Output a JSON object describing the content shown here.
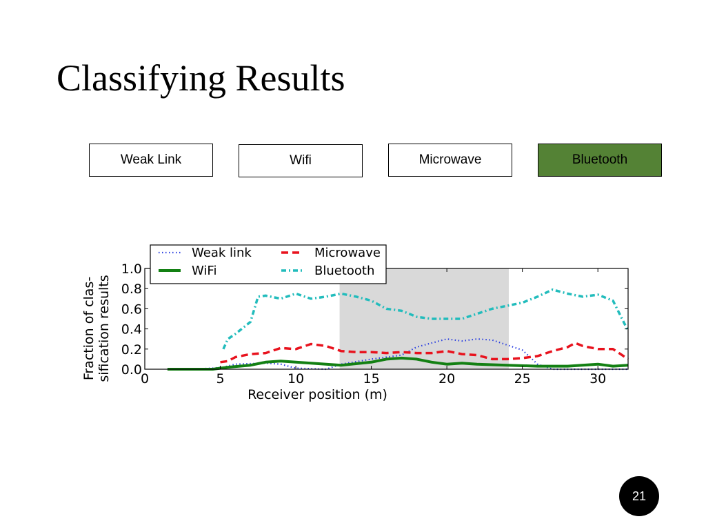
{
  "slide": {
    "title": "Classifying Results",
    "page_number": "21"
  },
  "tags": [
    {
      "label": "Weak Link",
      "active": false
    },
    {
      "label": "Wifi",
      "active": false
    },
    {
      "label": "Microwave",
      "active": false
    },
    {
      "label": "Bluetooth",
      "active": true
    }
  ],
  "colors": {
    "active_tag": "#548235",
    "weak_link": "#2a3fe0",
    "wifi": "#138013",
    "microwave": "#e8121d",
    "bluetooth": "#22bcbc",
    "shade": "#d9d9d9"
  },
  "chart_data": {
    "type": "line",
    "title": "",
    "xlabel": "Receiver position (m)",
    "ylabel": "Fraction of clas-\nsification results",
    "xlim": [
      0,
      32
    ],
    "ylim": [
      0,
      1.0
    ],
    "xticks": [
      0,
      5,
      10,
      15,
      20,
      25,
      30
    ],
    "yticks": [
      0.0,
      0.2,
      0.4,
      0.6,
      0.8,
      1.0
    ],
    "shaded_region": [
      12.9,
      24.1
    ],
    "legend_position": "top-left",
    "series": [
      {
        "name": "Weak link",
        "style": "dotted",
        "x": [
          1.5,
          3,
          4.5,
          5.2,
          6,
          8,
          9,
          10,
          12,
          13,
          15,
          17,
          18,
          19,
          20,
          21,
          22,
          23,
          24,
          25,
          26,
          27,
          28,
          30,
          32
        ],
        "y": [
          0.0,
          0.0,
          0.01,
          0.02,
          0.05,
          0.06,
          0.05,
          0.01,
          0.0,
          0.05,
          0.1,
          0.14,
          0.22,
          0.26,
          0.3,
          0.28,
          0.3,
          0.29,
          0.24,
          0.19,
          0.05,
          0.0,
          0.0,
          0.0,
          0.0
        ]
      },
      {
        "name": "WiFi",
        "style": "solid",
        "x": [
          1.5,
          3,
          4.5,
          5.5,
          7,
          8,
          9,
          10,
          12,
          13,
          15,
          16,
          17,
          18,
          19,
          20,
          21,
          22,
          24,
          26,
          28,
          30,
          31,
          32
        ],
        "y": [
          0.0,
          0.0,
          0.0,
          0.02,
          0.04,
          0.07,
          0.08,
          0.07,
          0.05,
          0.04,
          0.07,
          0.1,
          0.11,
          0.1,
          0.07,
          0.05,
          0.06,
          0.05,
          0.04,
          0.03,
          0.03,
          0.05,
          0.03,
          0.04
        ]
      },
      {
        "name": "Microwave",
        "style": "dashed",
        "x": [
          5,
          5.5,
          6,
          7,
          8,
          9,
          10,
          11,
          12,
          13,
          14,
          15,
          16,
          17,
          18,
          19,
          20,
          21,
          22,
          23,
          24,
          25,
          26,
          27,
          28,
          28.5,
          29,
          30,
          31,
          32
        ],
        "y": [
          0.07,
          0.08,
          0.12,
          0.15,
          0.16,
          0.21,
          0.2,
          0.25,
          0.23,
          0.18,
          0.17,
          0.17,
          0.16,
          0.17,
          0.16,
          0.16,
          0.18,
          0.15,
          0.14,
          0.1,
          0.1,
          0.11,
          0.13,
          0.18,
          0.22,
          0.26,
          0.23,
          0.2,
          0.2,
          0.1
        ]
      },
      {
        "name": "Bluetooth",
        "style": "dashdot",
        "x": [
          5.2,
          5.5,
          6,
          7,
          7.5,
          8,
          9,
          10,
          11,
          12,
          13,
          14,
          15,
          16,
          17,
          18,
          19,
          20,
          21,
          22,
          23,
          24,
          25,
          26,
          27,
          28,
          29,
          30,
          31,
          32
        ],
        "y": [
          0.2,
          0.3,
          0.35,
          0.47,
          0.72,
          0.73,
          0.7,
          0.75,
          0.7,
          0.72,
          0.75,
          0.72,
          0.68,
          0.6,
          0.58,
          0.52,
          0.5,
          0.5,
          0.5,
          0.55,
          0.6,
          0.63,
          0.66,
          0.72,
          0.79,
          0.75,
          0.72,
          0.74,
          0.68,
          0.38
        ]
      }
    ]
  }
}
